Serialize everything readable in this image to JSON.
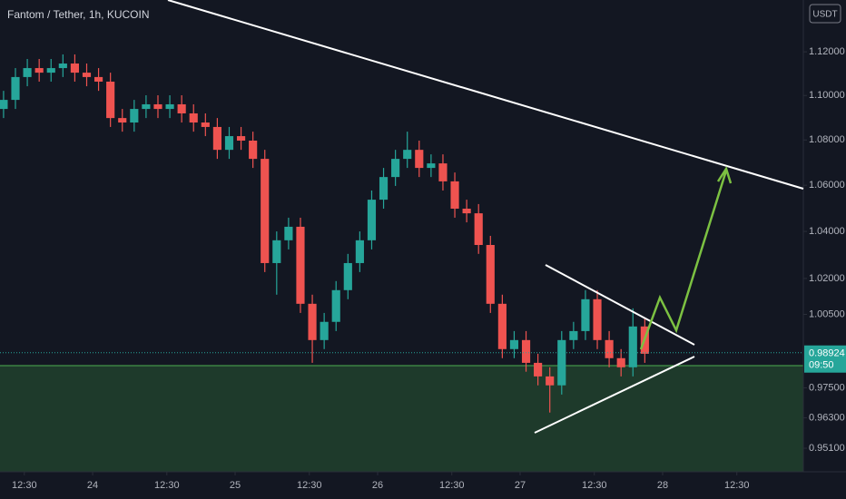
{
  "chart_data": {
    "type": "candlestick",
    "title": "Fantom / Tether, 1h, KUCOIN",
    "currency": "USDT",
    "log": true,
    "grid": false,
    "up_color": "#26a69a",
    "down_color": "#ef5350",
    "x": [
      -15,
      -13,
      -11,
      -9,
      -7,
      -5,
      -3,
      -1,
      1,
      3,
      5,
      7,
      9,
      11,
      13,
      15,
      17,
      19,
      21,
      23,
      25,
      27,
      29,
      31,
      33,
      35,
      37,
      39,
      41,
      43,
      45,
      47,
      49,
      51,
      53,
      55,
      57,
      59,
      61,
      63,
      65,
      67,
      69,
      71,
      73,
      75,
      77,
      79,
      81,
      83,
      85,
      87,
      89,
      91,
      93
    ],
    "open": [
      1.0939,
      1.098,
      1.1084,
      1.1125,
      1.1104,
      1.1125,
      1.1146,
      1.1104,
      1.1084,
      1.1063,
      1.0898,
      1.0878,
      1.0939,
      1.096,
      1.0939,
      1.096,
      1.0919,
      1.0878,
      1.0858,
      1.0756,
      1.0817,
      1.0797,
      1.0716,
      1.0265,
      1.0362,
      1.042,
      1.0094,
      0.9944,
      1.0019,
      1.0151,
      1.0265,
      1.0362,
      1.0537,
      1.0636,
      1.0716,
      1.0756,
      1.0676,
      1.0696,
      1.0617,
      1.0498,
      1.0478,
      1.0342,
      1.0094,
      0.9907,
      0.9944,
      0.9851,
      0.9796,
      0.976,
      0.9944,
      0.9981,
      1.0113,
      0.9944,
      0.987,
      0.9833,
      1.0
    ],
    "high": [
      1.1021,
      1.1125,
      1.1167,
      1.1167,
      1.1167,
      1.1188,
      1.1188,
      1.1146,
      1.1125,
      1.1104,
      1.0939,
      1.098,
      1.1001,
      1.1001,
      1.1001,
      1.1001,
      1.096,
      1.0919,
      1.0898,
      1.0858,
      1.0858,
      1.0837,
      1.0756,
      1.04,
      1.0459,
      1.0459,
      1.0132,
      1.0056,
      1.0189,
      1.0304,
      1.04,
      1.0577,
      1.0676,
      1.0756,
      1.0837,
      1.0797,
      1.0736,
      1.0736,
      1.0656,
      1.0537,
      1.0518,
      1.0381,
      1.0132,
      0.9981,
      0.9981,
      0.9888,
      0.9833,
      0.9981,
      1.0019,
      1.0151,
      1.0151,
      0.9981,
      0.9907,
      1.0075,
      1.0037
    ],
    "low": [
      1.0898,
      1.0939,
      1.1042,
      1.1063,
      1.1063,
      1.1084,
      1.1063,
      1.1042,
      1.1021,
      1.0858,
      1.0837,
      1.0837,
      1.0898,
      1.0898,
      1.0898,
      1.0878,
      1.0837,
      1.0817,
      1.0716,
      1.0716,
      1.0756,
      1.0676,
      1.0227,
      1.0132,
      1.0323,
      1.0056,
      0.9851,
      0.9907,
      0.9981,
      1.0113,
      1.0227,
      1.0323,
      1.0498,
      1.0597,
      1.0676,
      1.0636,
      1.0636,
      1.0577,
      1.0459,
      1.0439,
      1.0304,
      1.0056,
      0.987,
      0.987,
      0.9815,
      0.976,
      0.9651,
      0.9723,
      0.9907,
      0.9944,
      0.9907,
      0.9833,
      0.9796,
      0.9796,
      0.9851
    ],
    "close": [
      1.098,
      1.1084,
      1.1125,
      1.1104,
      1.1125,
      1.1146,
      1.1104,
      1.1084,
      1.1063,
      1.0898,
      1.0878,
      1.0939,
      1.096,
      1.0939,
      1.096,
      1.0919,
      1.0878,
      1.0858,
      1.0756,
      1.0817,
      1.0797,
      1.0716,
      1.0265,
      1.0362,
      1.042,
      1.0094,
      0.9944,
      1.0019,
      1.0151,
      1.0265,
      1.0362,
      1.0537,
      1.0636,
      1.0716,
      1.0756,
      1.0676,
      1.0696,
      1.0617,
      1.0498,
      1.0478,
      1.0342,
      1.0094,
      0.9907,
      0.9944,
      0.9851,
      0.9796,
      0.976,
      0.9944,
      0.9981,
      1.0113,
      0.9944,
      0.987,
      0.9833,
      1.0,
      0.9888
    ],
    "xlim": [
      -15.6,
      119.7
    ],
    "xticks": [
      {
        "value": -11.5,
        "label": "12:30"
      },
      0,
      {
        "value": 12.5,
        "label": "12:30"
      },
      {
        "value": 24,
        "label": "25"
      },
      {
        "value": 36.5,
        "label": "12:30"
      },
      {
        "value": 48,
        "label": "26"
      },
      {
        "value": 60.5,
        "label": "12:30"
      },
      {
        "value": 72,
        "label": "27"
      },
      {
        "value": 84.5,
        "label": "12:30"
      },
      {
        "value": 96,
        "label": "28"
      },
      {
        "value": 108.5,
        "label": "12:30"
      }
    ],
    "xtick_zero_label": "24",
    "ylim": [
      0.9418,
      1.1442
    ],
    "yticks": [
      {
        "value": 0.951,
        "label": "0.95100"
      },
      {
        "value": 0.963,
        "label": "0.96300"
      },
      {
        "value": 0.975,
        "label": "0.97500"
      },
      {
        "value": 1.005,
        "label": "1.00500"
      },
      {
        "value": 1.02,
        "label": "1.02000"
      },
      {
        "value": 1.04,
        "label": "1.04000"
      },
      {
        "value": 1.06,
        "label": "1.06000"
      },
      {
        "value": 1.08,
        "label": "1.08000"
      },
      {
        "value": 1.1,
        "label": "1.10000"
      },
      {
        "value": 1.12,
        "label": "1.12000"
      }
    ],
    "last_price": {
      "value": 0.98924,
      "label": "0.98924"
    },
    "countdown": "09:50"
  }
}
